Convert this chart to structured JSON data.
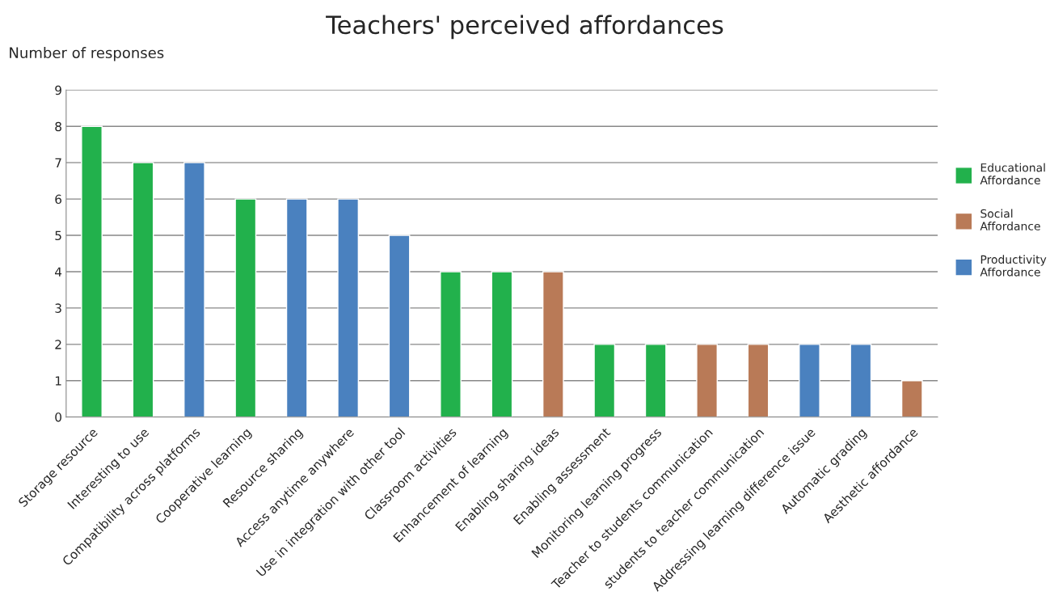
{
  "chart_data": {
    "type": "bar",
    "title": "Teachers' perceived affordances",
    "ylabel": "Number of responses",
    "categories": [
      "Storage resource",
      "Interesting to use",
      "Compatibility across platforms",
      "Cooperative learning",
      "Resource sharing",
      "Access anytime anywhere",
      "Use in integration with other tool",
      "Classroom activities",
      "Enhancement of learning",
      "Enabling sharing ideas",
      "Enabling assessment",
      "Monitoring learning progress",
      "Teacher to students communication",
      "students to teacher communication",
      "Addressing learning difference issue",
      "Automatic grading",
      "Aesthetic affordance"
    ],
    "stacked": true,
    "series": [
      {
        "name": "Educational Affordance",
        "color": "#22b14c",
        "values": [
          8,
          7,
          null,
          6,
          null,
          null,
          null,
          4,
          4,
          null,
          2,
          2,
          null,
          null,
          null,
          null,
          null
        ]
      },
      {
        "name": "Social Affordance",
        "color": "#b97a57",
        "values": [
          null,
          null,
          null,
          null,
          null,
          null,
          null,
          null,
          null,
          4,
          null,
          null,
          2,
          2,
          null,
          null,
          1
        ]
      },
      {
        "name": "Productivity Affordance",
        "color": "#4a81bf",
        "values": [
          null,
          null,
          7,
          null,
          6,
          6,
          5,
          null,
          null,
          null,
          null,
          null,
          null,
          null,
          2,
          2,
          null
        ]
      }
    ],
    "ylim": [
      0,
      9
    ],
    "yticks": [
      0,
      1,
      2,
      3,
      4,
      5,
      6,
      7,
      8,
      9
    ],
    "grid": "y",
    "legend": "right"
  }
}
